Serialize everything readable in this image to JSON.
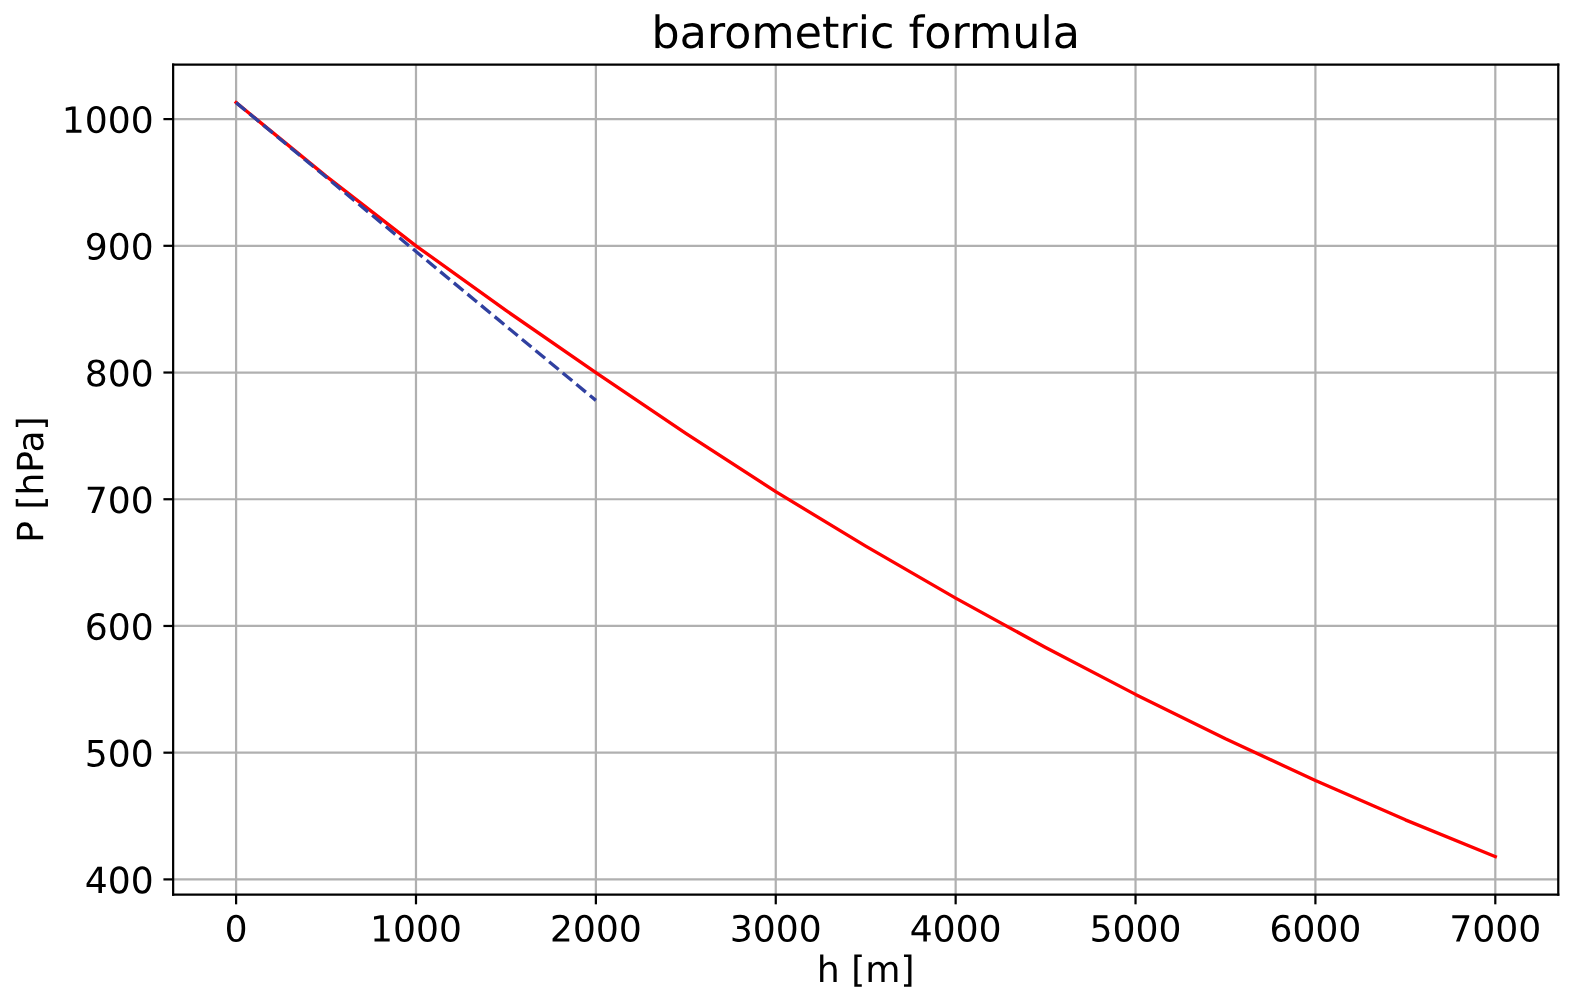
{
  "chart_data": {
    "type": "line",
    "title": "barometric formula",
    "xlabel": "h [m]",
    "ylabel": "P [hPa]",
    "xlim": [
      -350,
      7350
    ],
    "xticks": [
      0,
      1000,
      2000,
      3000,
      4000,
      5000,
      6000,
      7000
    ],
    "ylim": [
      388,
      1043
    ],
    "yticks": [
      400,
      500,
      600,
      700,
      800,
      900,
      1000
    ],
    "grid": true,
    "series": [
      {
        "color": "#ff0000",
        "line_style": "solid",
        "x": [
          0,
          500,
          1000,
          1500,
          2000,
          2500,
          3000,
          3500,
          4000,
          4500,
          5000,
          5500,
          6000,
          6500,
          7000
        ],
        "values": [
          1013,
          955,
          900,
          849,
          800,
          752,
          706,
          663,
          622,
          583,
          546,
          511,
          478,
          447,
          418
        ]
      },
      {
        "color": "#3040a0",
        "line_style": "dashed",
        "x": [
          0,
          2000
        ],
        "values": [
          1013,
          778
        ]
      }
    ]
  }
}
